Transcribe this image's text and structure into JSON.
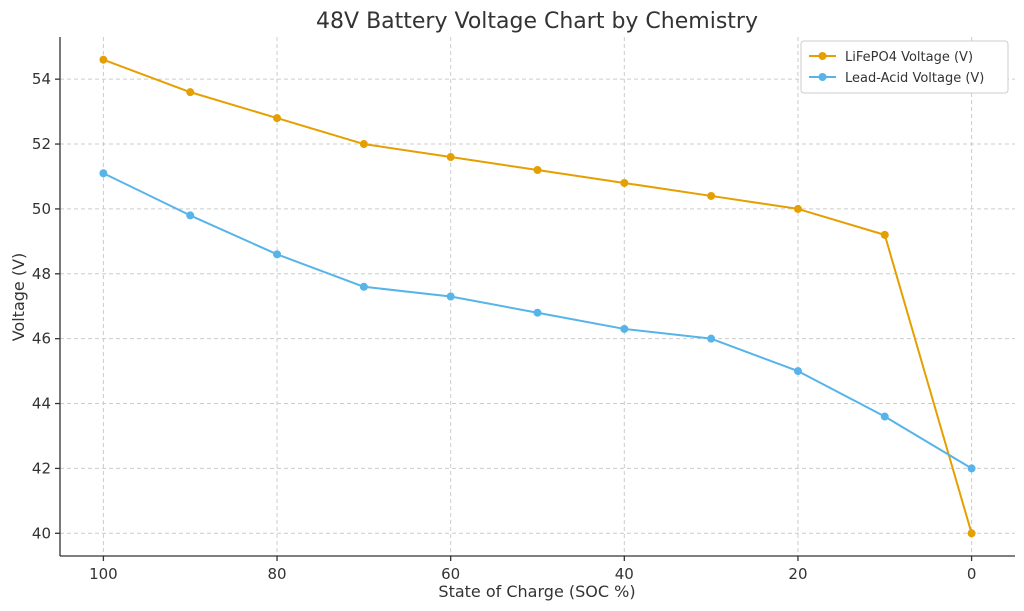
{
  "chart_data": {
    "type": "line",
    "title": "48V Battery Voltage Chart by Chemistry",
    "xlabel": "State of Charge (SOC %)",
    "ylabel": "Voltage (V)",
    "x": [
      100,
      90,
      80,
      70,
      60,
      50,
      40,
      30,
      20,
      10,
      0
    ],
    "xlim": [
      105,
      -5
    ],
    "ylim": [
      39.3,
      55.3
    ],
    "xticks": [
      100,
      80,
      60,
      40,
      20,
      0
    ],
    "yticks": [
      40,
      42,
      44,
      46,
      48,
      50,
      52,
      54
    ],
    "grid": true,
    "legend_position": "top-right",
    "series": [
      {
        "name": "LiFePO4 Voltage (V)",
        "color": "#E69F00",
        "values": [
          54.6,
          53.6,
          52.8,
          52.0,
          51.6,
          51.2,
          50.8,
          50.4,
          50.0,
          49.2,
          40.0
        ]
      },
      {
        "name": "Lead-Acid Voltage (V)",
        "color": "#56B4E9",
        "values": [
          51.1,
          49.8,
          48.6,
          47.6,
          47.3,
          46.8,
          46.3,
          46.0,
          45.0,
          43.6,
          42.0
        ]
      }
    ]
  }
}
